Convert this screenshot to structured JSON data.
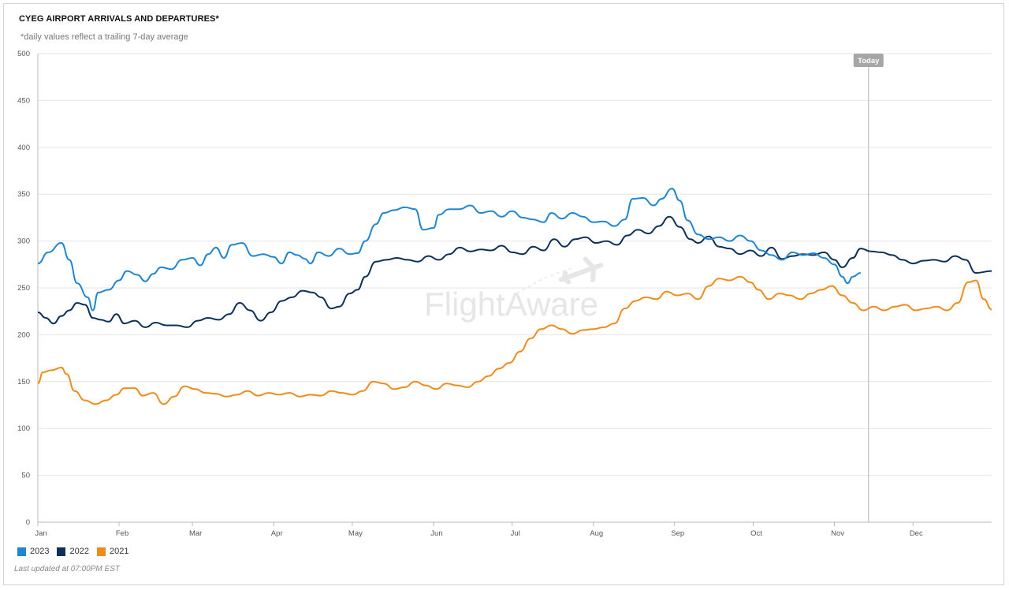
{
  "header": {
    "title": "CYEG AIRPORT ARRIVALS AND DEPARTURES*",
    "subtitle": "*daily values reflect a trailing 7-day average"
  },
  "footer": {
    "last_updated": "Last updated at 07:00PM EST"
  },
  "watermark": {
    "text": "FlightAware",
    "icon": "airplane-icon"
  },
  "today_marker": {
    "label": "Today",
    "x": "Nov 14"
  },
  "colors": {
    "2023": "#1f86cf",
    "2022": "#0b3059",
    "2021": "#ee8c1b",
    "grid": "#e6e6e6",
    "today_line": "#c2c2c2"
  },
  "chart_data": {
    "type": "line",
    "title": "CYEG AIRPORT ARRIVALS AND DEPARTURES*",
    "subtitle": "*daily values reflect a trailing 7-day average",
    "xlabel": "",
    "ylabel": "",
    "ylim": [
      0,
      500
    ],
    "yticks": [
      0,
      50,
      100,
      150,
      200,
      250,
      300,
      350,
      400,
      450,
      500
    ],
    "xticks": [
      "Jan",
      "Feb",
      "Mar",
      "Apr",
      "May",
      "Jun",
      "Jul",
      "Aug",
      "Sep",
      "Oct",
      "Nov",
      "Dec"
    ],
    "grid": true,
    "legend_position": "bottom-left",
    "series": [
      {
        "name": "2023",
        "color": "#1f86cf",
        "points": [
          [
            "Jan 1",
            276
          ],
          [
            "Jan 5",
            288
          ],
          [
            "Jan 10",
            298
          ],
          [
            "Jan 13",
            280
          ],
          [
            "Jan 16",
            255
          ],
          [
            "Jan 20",
            240
          ],
          [
            "Jan 22",
            226
          ],
          [
            "Jan 24",
            245
          ],
          [
            "Jan 28",
            248
          ],
          [
            "Feb 1",
            258
          ],
          [
            "Feb 4",
            268
          ],
          [
            "Feb 8",
            264
          ],
          [
            "Feb 11",
            257
          ],
          [
            "Feb 14",
            265
          ],
          [
            "Feb 17",
            272
          ],
          [
            "Feb 21",
            270
          ],
          [
            "Feb 25",
            280
          ],
          [
            "Mar 1",
            282
          ],
          [
            "Mar 4",
            274
          ],
          [
            "Mar 7",
            286
          ],
          [
            "Mar 10",
            293
          ],
          [
            "Mar 13",
            282
          ],
          [
            "Mar 16",
            296
          ],
          [
            "Mar 20",
            298
          ],
          [
            "Mar 24",
            284
          ],
          [
            "Mar 28",
            286
          ],
          [
            "Apr 1",
            283
          ],
          [
            "Apr 4",
            276
          ],
          [
            "Apr 7",
            288
          ],
          [
            "Apr 10",
            285
          ],
          [
            "Apr 13",
            281
          ],
          [
            "Apr 15",
            276
          ],
          [
            "Apr 18",
            288
          ],
          [
            "Apr 22",
            284
          ],
          [
            "Apr 26",
            292
          ],
          [
            "Apr 30",
            286
          ],
          [
            "May 3",
            287
          ],
          [
            "May 6",
            300
          ],
          [
            "May 10",
            318
          ],
          [
            "May 13",
            330
          ],
          [
            "May 17",
            333
          ],
          [
            "May 21",
            336
          ],
          [
            "May 25",
            334
          ],
          [
            "May 28",
            312
          ],
          [
            "Jun 1",
            314
          ],
          [
            "Jun 3",
            328
          ],
          [
            "Jun 7",
            334
          ],
          [
            "Jun 11",
            334
          ],
          [
            "Jun 15",
            338
          ],
          [
            "Jun 19",
            330
          ],
          [
            "Jun 23",
            332
          ],
          [
            "Jun 27",
            326
          ],
          [
            "Jul 1",
            332
          ],
          [
            "Jul 5",
            325
          ],
          [
            "Jul 9",
            323
          ],
          [
            "Jul 13",
            320
          ],
          [
            "Jul 16",
            330
          ],
          [
            "Jul 20",
            324
          ],
          [
            "Jul 24",
            330
          ],
          [
            "Jul 28",
            326
          ],
          [
            "Aug 1",
            320
          ],
          [
            "Aug 5",
            321
          ],
          [
            "Aug 9",
            316
          ],
          [
            "Aug 13",
            323
          ],
          [
            "Aug 16",
            345
          ],
          [
            "Aug 20",
            346
          ],
          [
            "Aug 24",
            338
          ],
          [
            "Aug 27",
            345
          ],
          [
            "Aug 31",
            356
          ],
          [
            "Sep 3",
            343
          ],
          [
            "Sep 6",
            322
          ],
          [
            "Sep 10",
            307
          ],
          [
            "Sep 14",
            302
          ],
          [
            "Sep 18",
            304
          ],
          [
            "Sep 22",
            300
          ],
          [
            "Sep 26",
            306
          ],
          [
            "Sep 30",
            300
          ],
          [
            "Oct 4",
            290
          ],
          [
            "Oct 8",
            285
          ],
          [
            "Oct 12",
            280
          ],
          [
            "Oct 16",
            288
          ],
          [
            "Oct 20",
            285
          ],
          [
            "Oct 24",
            287
          ],
          [
            "Oct 28",
            282
          ],
          [
            "Nov 1",
            275
          ],
          [
            "Nov 4",
            262
          ],
          [
            "Nov 6",
            255
          ],
          [
            "Nov 8",
            262
          ],
          [
            "Nov 11",
            266
          ]
        ]
      },
      {
        "name": "2022",
        "color": "#0b3059",
        "points": [
          [
            "Jan 1",
            224
          ],
          [
            "Jan 4",
            218
          ],
          [
            "Jan 7",
            212
          ],
          [
            "Jan 10",
            220
          ],
          [
            "Jan 13",
            226
          ],
          [
            "Jan 16",
            234
          ],
          [
            "Jan 19",
            232
          ],
          [
            "Jan 22",
            218
          ],
          [
            "Jan 25",
            216
          ],
          [
            "Jan 28",
            214
          ],
          [
            "Jan 31",
            222
          ],
          [
            "Feb 3",
            212
          ],
          [
            "Feb 7",
            215
          ],
          [
            "Feb 11",
            208
          ],
          [
            "Feb 15",
            213
          ],
          [
            "Feb 19",
            210
          ],
          [
            "Feb 23",
            210
          ],
          [
            "Feb 27",
            208
          ],
          [
            "Mar 3",
            215
          ],
          [
            "Mar 7",
            218
          ],
          [
            "Mar 11",
            216
          ],
          [
            "Mar 15",
            222
          ],
          [
            "Mar 19",
            234
          ],
          [
            "Mar 23",
            226
          ],
          [
            "Mar 27",
            215
          ],
          [
            "Mar 31",
            224
          ],
          [
            "Apr 4",
            236
          ],
          [
            "Apr 8",
            240
          ],
          [
            "Apr 12",
            247
          ],
          [
            "Apr 16",
            245
          ],
          [
            "Apr 19",
            240
          ],
          [
            "Apr 23",
            228
          ],
          [
            "Apr 26",
            230
          ],
          [
            "Apr 30",
            244
          ],
          [
            "May 3",
            248
          ],
          [
            "May 6",
            262
          ],
          [
            "May 10",
            278
          ],
          [
            "May 14",
            280
          ],
          [
            "May 18",
            282
          ],
          [
            "May 22",
            280
          ],
          [
            "May 26",
            278
          ],
          [
            "May 30",
            284
          ],
          [
            "Jun 3",
            280
          ],
          [
            "Jun 7",
            286
          ],
          [
            "Jun 11",
            293
          ],
          [
            "Jun 15",
            289
          ],
          [
            "Jun 19",
            291
          ],
          [
            "Jun 23",
            290
          ],
          [
            "Jun 27",
            295
          ],
          [
            "Jul 1",
            288
          ],
          [
            "Jul 5",
            286
          ],
          [
            "Jul 9",
            294
          ],
          [
            "Jul 13",
            290
          ],
          [
            "Jul 17",
            302
          ],
          [
            "Jul 21",
            294
          ],
          [
            "Jul 25",
            302
          ],
          [
            "Jul 29",
            304
          ],
          [
            "Aug 2",
            298
          ],
          [
            "Aug 6",
            300
          ],
          [
            "Aug 10",
            296
          ],
          [
            "Aug 14",
            306
          ],
          [
            "Aug 18",
            312
          ],
          [
            "Aug 22",
            308
          ],
          [
            "Aug 26",
            316
          ],
          [
            "Aug 30",
            326
          ],
          [
            "Sep 3",
            315
          ],
          [
            "Sep 7",
            302
          ],
          [
            "Sep 10",
            298
          ],
          [
            "Sep 14",
            305
          ],
          [
            "Sep 18",
            294
          ],
          [
            "Sep 22",
            292
          ],
          [
            "Sep 26",
            286
          ],
          [
            "Sep 30",
            290
          ],
          [
            "Oct 4",
            284
          ],
          [
            "Oct 8",
            293
          ],
          [
            "Oct 12",
            281
          ],
          [
            "Oct 16",
            284
          ],
          [
            "Oct 20",
            286
          ],
          [
            "Oct 24",
            285
          ],
          [
            "Oct 28",
            288
          ],
          [
            "Nov 1",
            280
          ],
          [
            "Nov 4",
            272
          ],
          [
            "Nov 8",
            282
          ],
          [
            "Nov 11",
            292
          ],
          [
            "Nov 15",
            289
          ],
          [
            "Nov 19",
            288
          ],
          [
            "Nov 23",
            285
          ],
          [
            "Nov 27",
            280
          ],
          [
            "Dec 1",
            276
          ],
          [
            "Dec 5",
            279
          ],
          [
            "Dec 9",
            280
          ],
          [
            "Dec 13",
            278
          ],
          [
            "Dec 17",
            284
          ],
          [
            "Dec 21",
            280
          ],
          [
            "Dec 25",
            266
          ],
          [
            "Dec 31",
            268
          ]
        ]
      },
      {
        "name": "2021",
        "color": "#ee8c1b",
        "points": [
          [
            "Jan 1",
            148
          ],
          [
            "Jan 3",
            160
          ],
          [
            "Jan 6",
            162
          ],
          [
            "Jan 10",
            165
          ],
          [
            "Jan 12",
            158
          ],
          [
            "Jan 15",
            140
          ],
          [
            "Jan 19",
            130
          ],
          [
            "Jan 23",
            126
          ],
          [
            "Jan 27",
            130
          ],
          [
            "Jan 31",
            136
          ],
          [
            "Feb 3",
            143
          ],
          [
            "Feb 7",
            143
          ],
          [
            "Feb 10",
            135
          ],
          [
            "Feb 14",
            138
          ],
          [
            "Feb 18",
            126
          ],
          [
            "Feb 22",
            134
          ],
          [
            "Feb 26",
            145
          ],
          [
            "Mar 2",
            142
          ],
          [
            "Mar 6",
            138
          ],
          [
            "Mar 10",
            137
          ],
          [
            "Mar 14",
            134
          ],
          [
            "Mar 18",
            136
          ],
          [
            "Mar 22",
            140
          ],
          [
            "Mar 26",
            135
          ],
          [
            "Mar 30",
            138
          ],
          [
            "Apr 3",
            136
          ],
          [
            "Apr 7",
            138
          ],
          [
            "Apr 11",
            134
          ],
          [
            "Apr 15",
            136
          ],
          [
            "Apr 19",
            135
          ],
          [
            "Apr 23",
            140
          ],
          [
            "Apr 27",
            138
          ],
          [
            "May 1",
            136
          ],
          [
            "May 5",
            140
          ],
          [
            "May 9",
            150
          ],
          [
            "May 13",
            148
          ],
          [
            "May 17",
            142
          ],
          [
            "May 21",
            144
          ],
          [
            "May 25",
            150
          ],
          [
            "May 29",
            146
          ],
          [
            "Jun 2",
            142
          ],
          [
            "Jun 6",
            148
          ],
          [
            "Jun 10",
            146
          ],
          [
            "Jun 14",
            144
          ],
          [
            "Jun 18",
            150
          ],
          [
            "Jun 22",
            156
          ],
          [
            "Jun 26",
            164
          ],
          [
            "Jun 30",
            170
          ],
          [
            "Jul 4",
            182
          ],
          [
            "Jul 8",
            196
          ],
          [
            "Jul 12",
            206
          ],
          [
            "Jul 16",
            210
          ],
          [
            "Jul 20",
            206
          ],
          [
            "Jul 24",
            201
          ],
          [
            "Jul 28",
            205
          ],
          [
            "Aug 1",
            206
          ],
          [
            "Aug 5",
            208
          ],
          [
            "Aug 9",
            212
          ],
          [
            "Aug 13",
            228
          ],
          [
            "Aug 17",
            236
          ],
          [
            "Aug 21",
            240
          ],
          [
            "Aug 25",
            238
          ],
          [
            "Aug 29",
            246
          ],
          [
            "Sep 2",
            242
          ],
          [
            "Sep 6",
            244
          ],
          [
            "Sep 10",
            238
          ],
          [
            "Sep 14",
            252
          ],
          [
            "Sep 18",
            260
          ],
          [
            "Sep 22",
            258
          ],
          [
            "Sep 26",
            262
          ],
          [
            "Sep 30",
            256
          ],
          [
            "Oct 3",
            248
          ],
          [
            "Oct 7",
            238
          ],
          [
            "Oct 11",
            244
          ],
          [
            "Oct 15",
            242
          ],
          [
            "Oct 19",
            238
          ],
          [
            "Oct 23",
            244
          ],
          [
            "Oct 27",
            248
          ],
          [
            "Oct 31",
            252
          ],
          [
            "Nov 4",
            242
          ],
          [
            "Nov 8",
            234
          ],
          [
            "Nov 12",
            226
          ],
          [
            "Nov 16",
            230
          ],
          [
            "Nov 20",
            226
          ],
          [
            "Nov 24",
            230
          ],
          [
            "Nov 28",
            232
          ],
          [
            "Dec 2",
            226
          ],
          [
            "Dec 6",
            228
          ],
          [
            "Dec 10",
            230
          ],
          [
            "Dec 14",
            226
          ],
          [
            "Dec 18",
            234
          ],
          [
            "Dec 22",
            256
          ],
          [
            "Dec 25",
            258
          ],
          [
            "Dec 28",
            238
          ],
          [
            "Dec 31",
            227
          ]
        ]
      }
    ]
  }
}
